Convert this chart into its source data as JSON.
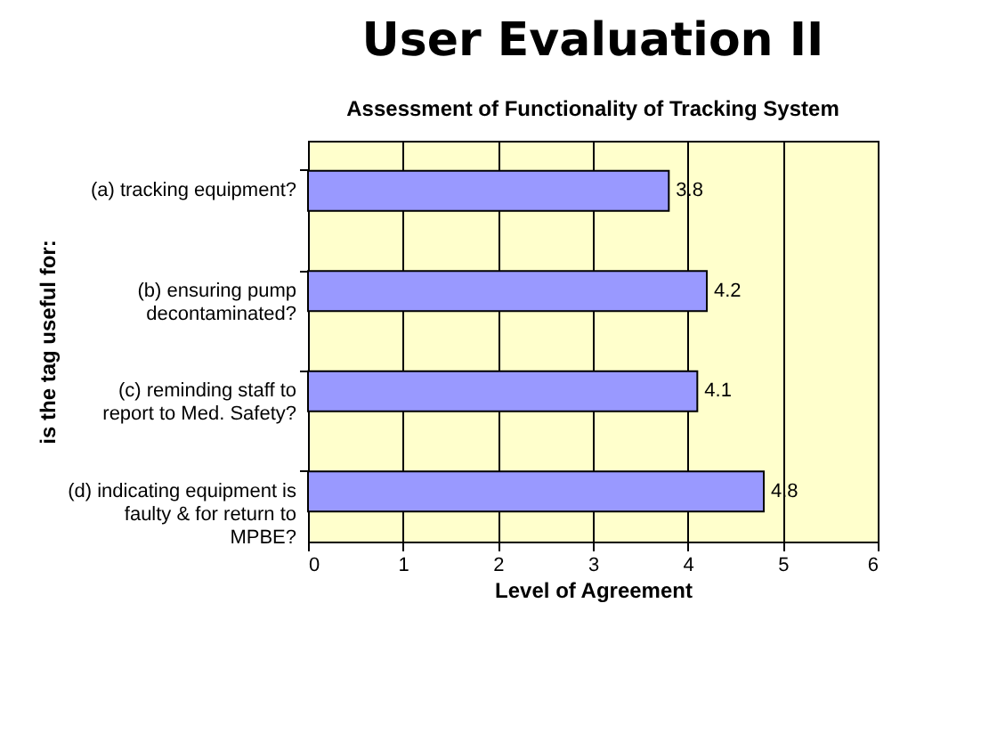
{
  "chart_data": {
    "type": "bar",
    "orientation": "horizontal",
    "title": "User Evaluation   II",
    "subtitle": "Assessment of Functionality of Tracking System",
    "xlabel": "Level of Agreement",
    "ylabel": "is the tag useful for:",
    "categories": [
      "(a) tracking equipment?",
      "(b) ensuring pump decontaminated?",
      "(c) reminding staff to report to Med. Safety?",
      "(d) indicating equipment is faulty & for return to  MPBE?"
    ],
    "values": [
      3.8,
      4.2,
      4.1,
      4.8
    ],
    "color": "#9999ff",
    "data_labels": true,
    "xlim": [
      0,
      6
    ],
    "xticks": [
      0,
      1,
      2,
      3,
      4,
      5,
      6
    ],
    "grid": "x"
  }
}
